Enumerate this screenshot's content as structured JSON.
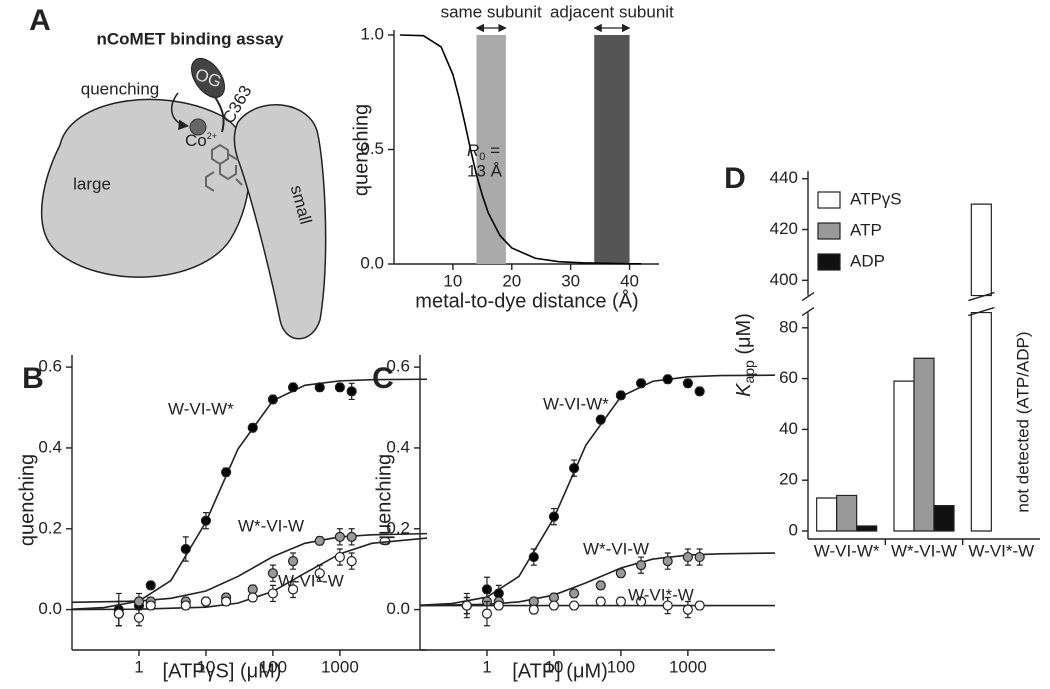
{
  "panel_labels": [
    "A",
    "B",
    "C",
    "D"
  ],
  "diagram": {
    "title": "nCoMET binding assay",
    "quenching": "quenching",
    "dye": "OG",
    "residue": "C363",
    "metal": {
      "text": "Co",
      "sup": "2+"
    },
    "large": "large",
    "small": "small"
  },
  "chart_data": [
    {
      "type": "line",
      "xlabel": "metal-to-dye distance (Å)",
      "ylabel": "quenching",
      "color": "#000000",
      "x": [
        1,
        5,
        8,
        10,
        11,
        12,
        13,
        14,
        15,
        16,
        18,
        20,
        24,
        28,
        32,
        40,
        42
      ],
      "values": [
        1.0,
        0.997,
        0.948,
        0.828,
        0.73,
        0.618,
        0.5,
        0.39,
        0.3,
        0.224,
        0.124,
        0.07,
        0.025,
        0.01,
        0.005,
        0.001,
        0.001
      ],
      "xlim": [
        0,
        45
      ],
      "ylim": [
        0,
        1
      ],
      "xticks": [
        10,
        20,
        30,
        40
      ],
      "yticks": [
        {
          "value": 0,
          "label": "0.0"
        },
        {
          "value": 0.5,
          "label": "0.5"
        },
        {
          "value": 1,
          "label": "1.0"
        }
      ],
      "bands": [
        {
          "label": "same subunit",
          "range": [
            14,
            19
          ],
          "color": "#aaaaaa"
        },
        {
          "label": "adjacent subunit",
          "range": [
            34,
            40
          ],
          "color": "#555555"
        }
      ],
      "annotation": {
        "text": "R",
        "sub": "0",
        "rest": " =",
        "line2": "13 Å"
      }
    },
    {
      "type": "scatter",
      "xscale": "log",
      "xlabel": "[ATPγS] (μM)",
      "ylabel": "quenching",
      "xlim": [
        0.1,
        20000
      ],
      "ylim": [
        -0.1,
        0.63
      ],
      "xticks": [
        1,
        10,
        100,
        1000
      ],
      "yticks": [
        {
          "value": 0,
          "label": "0.0"
        },
        {
          "value": 0.2,
          "label": "0.2"
        },
        {
          "value": 0.4,
          "label": "0.4"
        },
        {
          "value": 0.6,
          "label": "0.6"
        }
      ],
      "series": [
        {
          "name": "W-VI-W*",
          "color": "#000000",
          "x": [
            0.5,
            1,
            1.5,
            5,
            10,
            20,
            50,
            100,
            200,
            500,
            1000,
            1500
          ],
          "values": [
            0.0,
            0.01,
            0.06,
            0.15,
            0.22,
            0.34,
            0.45,
            0.52,
            0.55,
            0.55,
            0.55,
            0.54
          ],
          "errors": [
            0.04,
            0.02,
            0.01,
            0.03,
            0.02,
            0.01,
            0.01,
            0.01,
            0.01,
            0.01,
            0.01,
            0.02
          ],
          "fit": {
            "x": [
              0.1,
              0.3,
              1,
              3,
              10,
              30,
              100,
              300,
              1000,
              3000,
              20000
            ],
            "values": [
              0.001,
              0.005,
              0.021,
              0.072,
              0.217,
              0.397,
              0.517,
              0.555,
              0.566,
              0.569,
              0.57
            ]
          }
        },
        {
          "name": "W*-VI-W",
          "color": "#999999",
          "x": [
            0.5,
            1,
            1.5,
            5,
            10,
            20,
            50,
            100,
            200,
            500,
            1000,
            1500
          ],
          "values": [
            -0.01,
            0.02,
            0.02,
            0.02,
            0.02,
            0.03,
            0.05,
            0.09,
            0.12,
            0.17,
            0.18,
            0.18
          ],
          "errors": [
            0.03,
            0.02,
            0.01,
            0.01,
            0.01,
            0.01,
            0.01,
            0.02,
            0.02,
            0.01,
            0.02,
            0.02
          ],
          "fit": {
            "x": [
              0.1,
              1,
              3,
              10,
              30,
              100,
              300,
              1000,
              3000,
              20000
            ],
            "values": [
              0.018,
              0.021,
              0.028,
              0.046,
              0.082,
              0.131,
              0.164,
              0.18,
              0.185,
              0.188
            ]
          }
        },
        {
          "name": "W-VI*-W",
          "color": "#ffffff",
          "x": [
            0.5,
            1,
            1.5,
            5,
            10,
            20,
            50,
            100,
            200,
            500,
            1000,
            1500
          ],
          "values": [
            -0.01,
            -0.02,
            0.01,
            0.01,
            0.02,
            0.02,
            0.03,
            0.04,
            0.05,
            0.09,
            0.13,
            0.12
          ],
          "errors": [
            0.03,
            0.02,
            0.01,
            0.01,
            0.01,
            0.01,
            0.01,
            0.02,
            0.02,
            0.02,
            0.02,
            0.02
          ],
          "fit": {
            "x": [
              0.1,
              1,
              10,
              30,
              100,
              300,
              1000,
              3000,
              20000
            ],
            "values": [
              0.0,
              0.001,
              0.006,
              0.016,
              0.045,
              0.09,
              0.138,
              0.164,
              0.177
            ]
          }
        }
      ]
    },
    {
      "type": "scatter",
      "xscale": "log",
      "xlabel": "[ATP] (μM)",
      "ylabel": "quenching",
      "xlim": [
        0.1,
        20000
      ],
      "ylim": [
        -0.1,
        0.63
      ],
      "xticks": [
        1,
        10,
        100,
        1000
      ],
      "yticks": [
        {
          "value": 0,
          "label": "0.0"
        },
        {
          "value": 0.2,
          "label": "0.2"
        },
        {
          "value": 0.4,
          "label": "0.4"
        },
        {
          "value": 0.6,
          "label": "0.6"
        }
      ],
      "series": [
        {
          "name": "W-VI-W*",
          "color": "#000000",
          "x": [
            0.5,
            1,
            1.5,
            5,
            10,
            20,
            50,
            100,
            200,
            500,
            1000,
            1500
          ],
          "values": [
            0.01,
            0.05,
            0.04,
            0.13,
            0.23,
            0.35,
            0.47,
            0.53,
            0.56,
            0.57,
            0.56,
            0.54
          ],
          "errors": [
            0.03,
            0.03,
            0.02,
            0.02,
            0.02,
            0.02,
            0.01,
            0.01,
            0.01,
            0.01,
            0.01,
            0.01
          ],
          "fit": {
            "x": [
              0.1,
              0.3,
              1,
              3,
              10,
              30,
              100,
              300,
              1000,
              3000,
              20000
            ],
            "values": [
              0.011,
              0.015,
              0.031,
              0.082,
              0.227,
              0.407,
              0.527,
              0.565,
              0.576,
              0.579,
              0.58
            ]
          }
        },
        {
          "name": "W*-VI-W",
          "color": "#999999",
          "x": [
            0.5,
            1,
            1.5,
            5,
            10,
            20,
            50,
            100,
            200,
            500,
            1000,
            1500
          ],
          "values": [
            0.01,
            0.02,
            0.02,
            0.02,
            0.03,
            0.04,
            0.06,
            0.09,
            0.11,
            0.12,
            0.13,
            0.13
          ],
          "errors": [
            0.02,
            0.02,
            0.01,
            0.01,
            0.01,
            0.01,
            0.01,
            0.01,
            0.02,
            0.02,
            0.02,
            0.02
          ],
          "fit": {
            "x": [
              0.1,
              1,
              3,
              10,
              30,
              100,
              300,
              1000,
              3000,
              20000
            ],
            "values": [
              0.01,
              0.013,
              0.019,
              0.036,
              0.066,
              0.103,
              0.125,
              0.135,
              0.138,
              0.14
            ]
          }
        },
        {
          "name": "W-VI*-W",
          "color": "#ffffff",
          "x": [
            0.5,
            1,
            1.5,
            5,
            10,
            20,
            50,
            100,
            200,
            500,
            1000,
            1500
          ],
          "values": [
            0.01,
            -0.01,
            0.01,
            0.0,
            0.01,
            0.01,
            0.02,
            0.02,
            0.02,
            0.01,
            0.0,
            0.01
          ],
          "errors": [
            0.02,
            0.03,
            0.01,
            0.01,
            0.01,
            0.01,
            0.01,
            0.01,
            0.01,
            0.02,
            0.02,
            0.01
          ],
          "fit": {
            "x": [
              0.1,
              20000
            ],
            "values": [
              0.01,
              0.01
            ]
          }
        }
      ]
    },
    {
      "type": "bar",
      "categories": [
        "W-VI-W*",
        "W*-VI-W",
        "W-VI*-W"
      ],
      "series": [
        {
          "name": "ATPγS",
          "color": "#ffffff",
          "values": [
            13,
            59,
            430
          ]
        },
        {
          "name": "ATP",
          "color": "#999999",
          "values": [
            14,
            68,
            null
          ]
        },
        {
          "name": "ADP",
          "color": "#111111",
          "values": [
            2,
            10,
            null
          ]
        }
      ],
      "ylim": [
        0,
        443
      ],
      "axis_break": [
        86,
        394
      ],
      "yticks": [
        0,
        20,
        40,
        60,
        80,
        400,
        420,
        440
      ],
      "ylabel": {
        "main": "K",
        "sub": "app",
        "unit": " (μM)"
      },
      "annotation": "not detected (ATP/ADP)",
      "legend": "upper left"
    }
  ]
}
